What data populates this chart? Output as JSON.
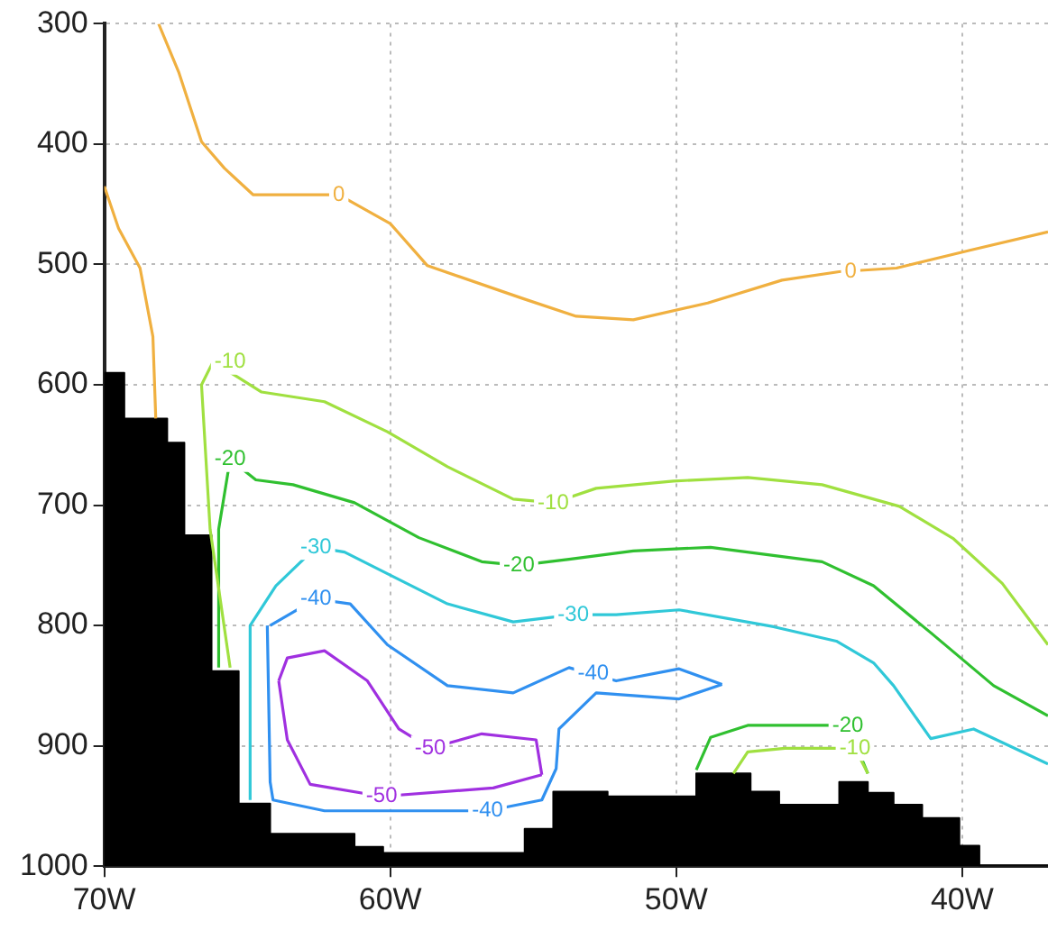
{
  "chart_data": {
    "type": "line",
    "xlim": [
      -70,
      -37
    ],
    "ylim": [
      1000,
      300
    ],
    "xticks": [
      {
        "value": -70,
        "label": "70W"
      },
      {
        "value": -60,
        "label": "60W"
      },
      {
        "value": -50,
        "label": "50W"
      },
      {
        "value": -40,
        "label": "40W"
      }
    ],
    "yticks": [
      300,
      400,
      500,
      600,
      700,
      800,
      900,
      1000
    ],
    "grid": true,
    "legend": false,
    "marker": "none",
    "line_style": "solid",
    "series": [
      {
        "type": "area",
        "color": "#000000",
        "x": [
          -70,
          -70,
          -69.3,
          -69.3,
          -67.8,
          -67.8,
          -67.2,
          -67.2,
          -66.25,
          -66.25,
          -65.3,
          -65.3,
          -64.2,
          -64.2,
          -61.25,
          -61.25,
          -60.25,
          -60.25,
          -55.3,
          -55.3,
          -54.3,
          -54.3,
          -52.4,
          -52.4,
          -49.3,
          -49.3,
          -47.4,
          -47.4,
          -46.4,
          -46.4,
          -44.3,
          -44.3,
          -43.3,
          -43.3,
          -42.4,
          -42.4,
          -41.4,
          -41.4,
          -40.1,
          -40.1,
          -39.4,
          -39.4,
          -37
        ],
        "values": [
          1000,
          590,
          590,
          628,
          628,
          648,
          648,
          725,
          725,
          838,
          838,
          948,
          948,
          973,
          973,
          984,
          984,
          989,
          989,
          969,
          969,
          938,
          938,
          942,
          942,
          923,
          923,
          938,
          938,
          949,
          949,
          930,
          930,
          939,
          939,
          949,
          949,
          960,
          960,
          983,
          983,
          1000,
          1000
        ]
      },
      {
        "color": "#f0b040",
        "x": [
          -68.1,
          -67.4,
          -66.6,
          -65.8,
          -64.8,
          -61.8,
          -60.0,
          -58.7,
          -55.4,
          -53.5,
          -51.5,
          -48.9,
          -46.3,
          -44.3,
          -42.3,
          -39.7,
          -37.0
        ],
        "values": [
          300,
          340,
          398,
          420,
          442,
          442,
          466,
          501,
          528,
          543,
          546,
          532,
          513,
          506,
          503,
          488,
          473
        ]
      },
      {
        "color": "#f0b040",
        "x": [
          -70,
          -69.5,
          -68.75,
          -68.3,
          -68.2
        ],
        "values": [
          435,
          470,
          503,
          560,
          628
        ]
      },
      {
        "color": "#a0e040",
        "x": [
          -65.6,
          -66.3,
          -66.6,
          -66.2,
          -65.3,
          -64.5,
          -62.3,
          -60.1,
          -58.0,
          -55.7,
          -54.3,
          -52.8,
          -50.1,
          -47.5,
          -44.9,
          -42.2,
          -40.3,
          -38.6,
          -37.0
        ],
        "values": [
          835,
          720,
          600,
          581,
          594,
          606,
          614,
          639,
          668,
          695,
          698,
          686,
          680,
          677,
          683,
          701,
          728,
          765,
          816
        ]
      },
      {
        "color": "#a0e040",
        "x": [
          -48.0,
          -47.5,
          -46.2,
          -44.9,
          -43.75,
          -43.3
        ],
        "values": [
          923,
          905,
          902,
          902,
          902,
          923
        ]
      },
      {
        "color": "#30c030",
        "x": [
          -66.0,
          -66.0,
          -65.6,
          -64.7,
          -63.4,
          -61.25,
          -59.0,
          -56.8,
          -55.5,
          -53.75,
          -51.5,
          -48.8,
          -44.9,
          -43.1,
          -41.1,
          -38.9,
          -37.0
        ],
        "values": [
          835,
          720,
          662,
          679,
          683,
          698,
          727,
          747,
          750,
          745,
          738,
          735,
          747,
          767,
          806,
          850,
          875
        ]
      },
      {
        "color": "#30c030",
        "x": [
          -49.3,
          -48.8,
          -47.5,
          -45.5,
          -44.0,
          -43.3
        ],
        "values": [
          920,
          893,
          883,
          883,
          883,
          923
        ]
      },
      {
        "color": "#30c8d8",
        "x": [
          -64.9,
          -64.9,
          -64.0,
          -62.6,
          -61.6,
          -60.1,
          -58.0,
          -55.7,
          -53.6,
          -52.1,
          -49.9,
          -46.6,
          -44.4,
          -43.1,
          -42.4,
          -41.1,
          -39.6,
          -37.0
        ],
        "values": [
          945,
          800,
          767,
          735,
          739,
          757,
          782,
          797,
          791,
          791,
          787,
          801,
          813,
          831,
          850,
          894,
          886,
          915
        ]
      },
      {
        "color": "#3090f0",
        "x": [
          -64.2,
          -62.6,
          -61.4,
          -60.1,
          -58.0,
          -55.7,
          -53.75,
          -52.1,
          -49.9,
          -48.4
        ],
        "values": [
          800,
          778,
          782,
          816,
          850,
          856,
          835,
          846,
          836,
          849
        ]
      },
      {
        "color": "#3090f0",
        "x": [
          -64.3,
          -64.2,
          -64.1,
          -62.3,
          -60.1,
          -56.6,
          -54.7,
          -54.2,
          -54.1,
          -52.8,
          -49.9,
          -48.4
        ],
        "values": [
          800,
          930,
          945,
          954,
          954,
          954,
          945,
          919,
          886,
          856,
          861,
          849
        ]
      },
      {
        "color": "#a030e0",
        "x": [
          -63.9,
          -63.6,
          -62.3,
          -60.8,
          -59.7,
          -58.6,
          -56.8,
          -54.9,
          -54.7
        ],
        "values": [
          846,
          827,
          821,
          846,
          886,
          902,
          890,
          895,
          924
        ]
      },
      {
        "color": "#a030e0",
        "x": [
          -63.9,
          -63.6,
          -62.8,
          -60.3,
          -56.4,
          -54.7
        ],
        "values": [
          846,
          895,
          932,
          942,
          935,
          924
        ]
      }
    ],
    "annotations": [
      {
        "text": "0",
        "x": -61.8,
        "y": 442
      },
      {
        "text": "0",
        "x": -43.9,
        "y": 506
      },
      {
        "text": "-10",
        "x": -65.6,
        "y": 581
      },
      {
        "text": "-10",
        "x": -54.3,
        "y": 698
      },
      {
        "text": "-20",
        "x": -65.6,
        "y": 662
      },
      {
        "text": "-20",
        "x": -55.5,
        "y": 750
      },
      {
        "text": "-30",
        "x": -62.6,
        "y": 735
      },
      {
        "text": "-30",
        "x": -53.6,
        "y": 791
      },
      {
        "text": "-40",
        "x": -62.6,
        "y": 778
      },
      {
        "text": "-40",
        "x": -52.9,
        "y": 840
      },
      {
        "text": "-40",
        "x": -56.6,
        "y": 954
      },
      {
        "text": "-50",
        "x": -58.6,
        "y": 902
      },
      {
        "text": "-50",
        "x": -60.3,
        "y": 942
      },
      {
        "text": "-20",
        "x": -44.0,
        "y": 883
      },
      {
        "text": "-10",
        "x": -43.75,
        "y": 902
      }
    ]
  }
}
